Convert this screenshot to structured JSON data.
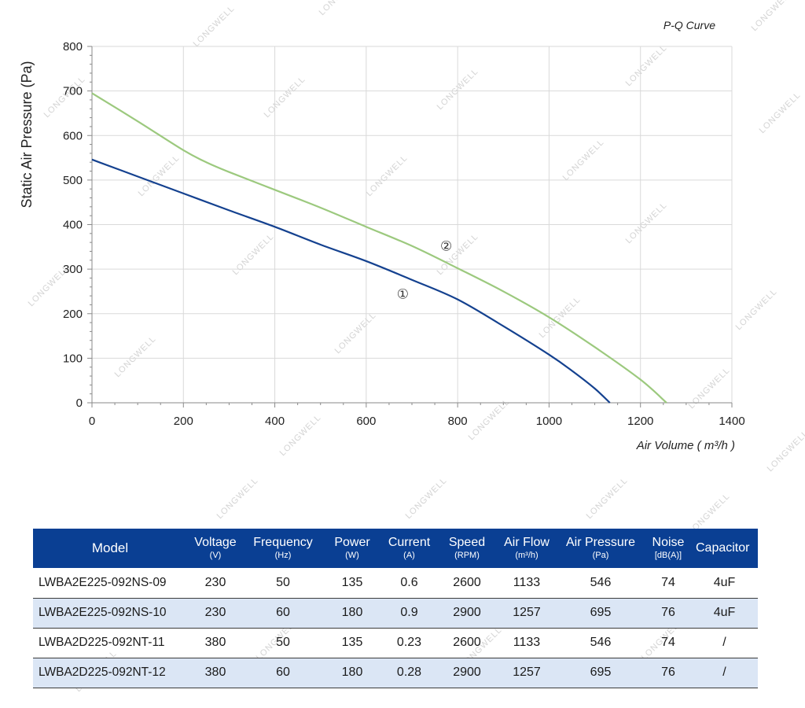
{
  "chart_data": {
    "type": "line",
    "title": "P-Q Curve",
    "xlabel": "Air Volume ( m³/h )",
    "ylabel": "Static Air Pressure  (Pa)",
    "xlim": [
      0,
      1400
    ],
    "ylim": [
      0,
      800
    ],
    "x_ticks": [
      0,
      200,
      400,
      600,
      800,
      1000,
      1200,
      1400
    ],
    "y_ticks": [
      0,
      100,
      200,
      300,
      400,
      500,
      600,
      700,
      800
    ],
    "x_tick_labels": [
      "0",
      "200",
      "400",
      "600",
      "800",
      "1000",
      "1200",
      "1400"
    ],
    "y_tick_labels": [
      "0",
      "100",
      "200",
      "300",
      "400",
      "500",
      "600",
      "700",
      "800"
    ],
    "grid": true,
    "series": [
      {
        "name": "①",
        "color": "#14418f",
        "points": [
          [
            0,
            546
          ],
          [
            100,
            508
          ],
          [
            200,
            470
          ],
          [
            300,
            432
          ],
          [
            400,
            395
          ],
          [
            500,
            355
          ],
          [
            600,
            318
          ],
          [
            700,
            276
          ],
          [
            800,
            232
          ],
          [
            900,
            172
          ],
          [
            1000,
            108
          ],
          [
            1050,
            72
          ],
          [
            1100,
            32
          ],
          [
            1133,
            0
          ]
        ]
      },
      {
        "name": "②",
        "color": "#9cc97e",
        "points": [
          [
            0,
            695
          ],
          [
            100,
            632
          ],
          [
            200,
            567
          ],
          [
            250,
            540
          ],
          [
            300,
            518
          ],
          [
            400,
            478
          ],
          [
            500,
            438
          ],
          [
            600,
            395
          ],
          [
            700,
            352
          ],
          [
            800,
            302
          ],
          [
            900,
            250
          ],
          [
            1000,
            192
          ],
          [
            1100,
            125
          ],
          [
            1200,
            52
          ],
          [
            1257,
            0
          ]
        ]
      }
    ],
    "annotations": [
      {
        "text": "①",
        "x": 680,
        "y": 245
      },
      {
        "text": "②",
        "x": 775,
        "y": 352
      }
    ]
  },
  "watermark": {
    "text": "LONGWELL",
    "color": "#d4d4d4"
  },
  "spec_table": {
    "header_bg": "#0a3f93",
    "alt_row_bg": "#dbe6f5",
    "headers": [
      {
        "label": "Model",
        "unit": ""
      },
      {
        "label": "Voltage",
        "unit": "(V)"
      },
      {
        "label": "Frequency",
        "unit": "(Hz)"
      },
      {
        "label": "Power",
        "unit": "(W)"
      },
      {
        "label": "Current",
        "unit": "(A)"
      },
      {
        "label": "Speed",
        "unit": "(RPM)"
      },
      {
        "label": "Air Flow",
        "unit": "(m³/h)"
      },
      {
        "label": "Air Pressure",
        "unit": "(Pa)"
      },
      {
        "label": "Noise",
        "unit": "[dB(A)]"
      },
      {
        "label": "Capacitor",
        "unit": ""
      }
    ],
    "rows": [
      [
        "LWBA2E225-092NS-09",
        "230",
        "50",
        "135",
        "0.6",
        "2600",
        "1133",
        "546",
        "74",
        "4uF"
      ],
      [
        "LWBA2E225-092NS-10",
        "230",
        "60",
        "180",
        "0.9",
        "2900",
        "1257",
        "695",
        "76",
        "4uF"
      ],
      [
        "LWBA2D225-092NT-11",
        "380",
        "50",
        "135",
        "0.23",
        "2600",
        "1133",
        "546",
        "74",
        "/"
      ],
      [
        "LWBA2D225-092NT-12",
        "380",
        "60",
        "180",
        "0.28",
        "2900",
        "1257",
        "695",
        "76",
        "/"
      ]
    ]
  }
}
